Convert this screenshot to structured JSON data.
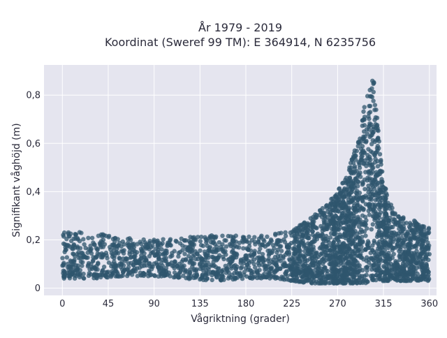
{
  "chart_data": {
    "type": "scatter",
    "title": "År 1979 - 2019",
    "subtitle": "Koordinat (Sweref 99 TM): E 364914, N 6235756",
    "xlabel": "Vågriktning (grader)",
    "ylabel": "Signifikant våghöjd (m)",
    "xlim": [
      -18,
      367
    ],
    "ylim": [
      -0.03,
      0.925
    ],
    "xticks": [
      0,
      45,
      90,
      135,
      180,
      225,
      270,
      315,
      360
    ],
    "xtick_labels": [
      "0",
      "45",
      "90",
      "135",
      "180",
      "225",
      "270",
      "315",
      "360"
    ],
    "yticks": [
      0,
      0.2,
      0.4,
      0.6,
      0.8
    ],
    "ytick_labels": [
      "0",
      "0,2",
      "0,4",
      "0,6",
      "0,8"
    ],
    "grid": true,
    "colors": {
      "marker": "#2f566e",
      "plot_bg": "#e5e5ef",
      "grid": "#ffffff"
    },
    "envelope": [
      [
        0,
        0.04,
        0.24
      ],
      [
        30,
        0.04,
        0.23
      ],
      [
        60,
        0.05,
        0.21
      ],
      [
        90,
        0.05,
        0.2
      ],
      [
        120,
        0.04,
        0.21
      ],
      [
        150,
        0.03,
        0.22
      ],
      [
        180,
        0.04,
        0.22
      ],
      [
        210,
        0.04,
        0.23
      ],
      [
        225,
        0.03,
        0.24
      ],
      [
        240,
        0.02,
        0.28
      ],
      [
        255,
        0.02,
        0.33
      ],
      [
        270,
        0.02,
        0.4
      ],
      [
        280,
        0.02,
        0.48
      ],
      [
        290,
        0.02,
        0.62
      ],
      [
        297,
        0.02,
        0.78
      ],
      [
        302,
        0.03,
        0.88
      ],
      [
        306,
        0.03,
        0.85
      ],
      [
        310,
        0.03,
        0.65
      ],
      [
        315,
        0.03,
        0.45
      ],
      [
        320,
        0.03,
        0.36
      ],
      [
        330,
        0.03,
        0.3
      ],
      [
        345,
        0.03,
        0.28
      ],
      [
        360,
        0.03,
        0.25
      ]
    ]
  }
}
